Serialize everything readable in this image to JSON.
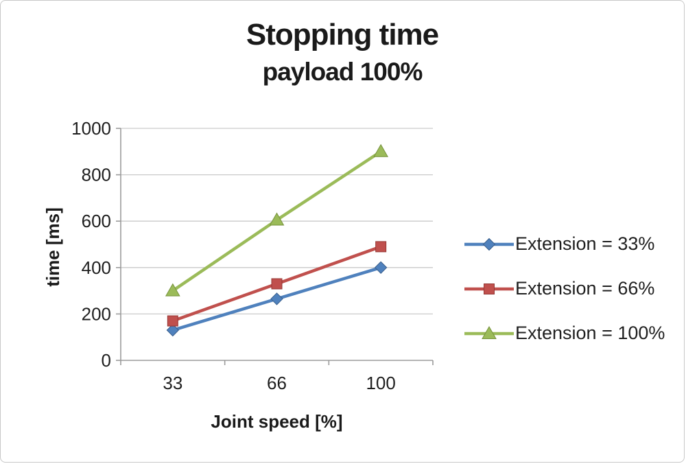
{
  "window": {
    "background": "#ffffff",
    "border_color": "#c7c7c7"
  },
  "colors": {
    "grid": "#c9c9c9",
    "axis": "#9b9b9b",
    "text": "#1f1f1f"
  },
  "chart_data": {
    "type": "line",
    "title": "Stopping time",
    "subtitle": "payload 100%",
    "xlabel": "Joint speed [%]",
    "ylabel": "time [ms]",
    "categories": [
      "33",
      "66",
      "100"
    ],
    "yticks": [
      "0",
      "200",
      "400",
      "600",
      "800",
      "1000"
    ],
    "ylim": [
      0,
      1000
    ],
    "grid": true,
    "legend_position": "right",
    "series": [
      {
        "name": "Extension = 33%",
        "values": [
          130,
          265,
          400
        ],
        "color": "#4f81bd",
        "edge": "#385d8a",
        "marker": "diamond"
      },
      {
        "name": "Extension = 66%",
        "values": [
          170,
          330,
          490
        ],
        "color": "#c0504d",
        "edge": "#953734",
        "marker": "square"
      },
      {
        "name": "Extension = 100%",
        "values": [
          300,
          605,
          900
        ],
        "color": "#9bbb59",
        "edge": "#76923c",
        "marker": "triangle"
      }
    ]
  }
}
